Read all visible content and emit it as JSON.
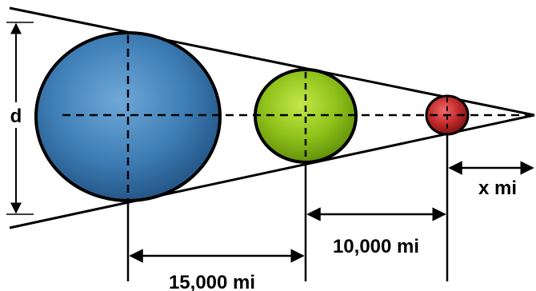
{
  "labels": {
    "diameter": "d",
    "distance_1": "15,000 mi",
    "distance_2": "10,000 mi",
    "distance_x": "x mi"
  },
  "colors": {
    "large_sphere": "#3f7fb6",
    "medium_sphere": "#8fc21a",
    "small_sphere": "#c22a2a",
    "outline": "#000000"
  }
}
